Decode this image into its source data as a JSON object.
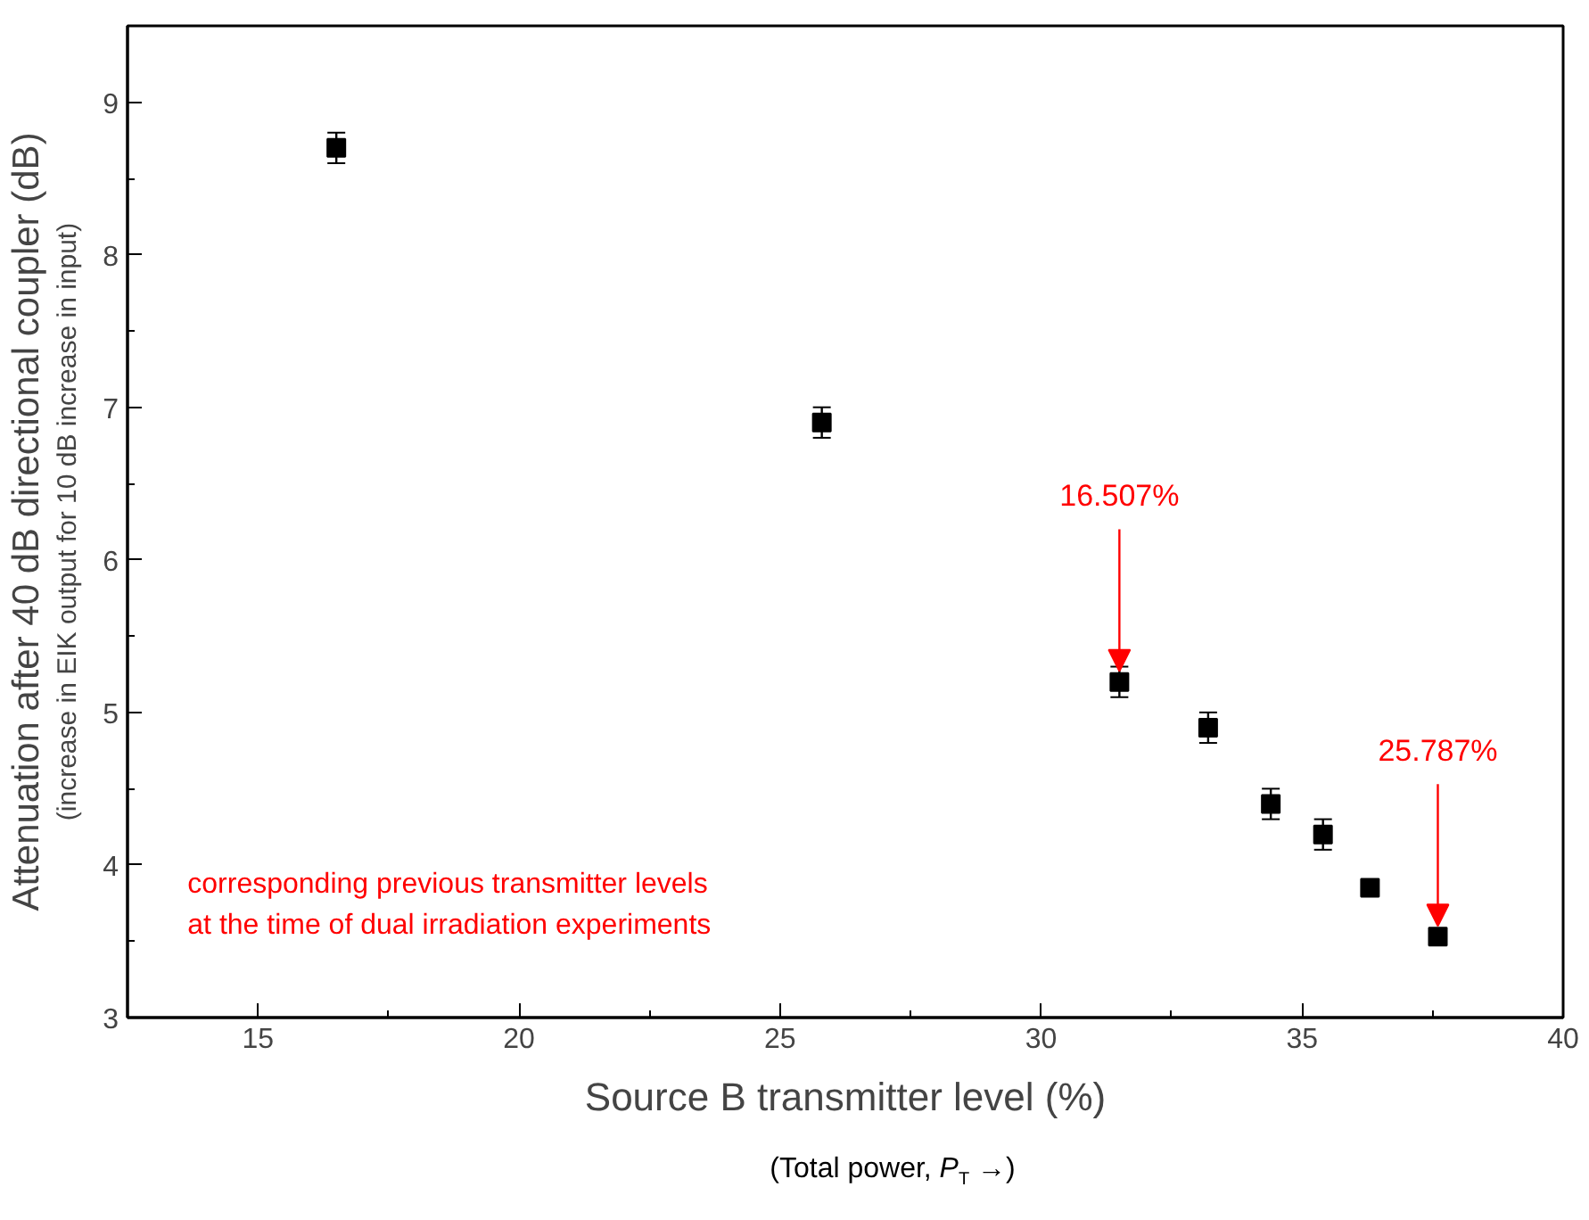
{
  "chart_data": {
    "type": "scatter",
    "xlabel": "Source B transmitter level (%)",
    "ylabel": "Attenuation after 40 dB directional coupler (dB)",
    "subtitle": "(Total power, P$_{T}$ →)",
    "x": [
      16.5,
      25.8,
      31.5,
      33.2,
      34.4,
      35.4,
      36.3,
      37.6
    ],
    "values": [
      8.7,
      6.9,
      5.2,
      4.9,
      4.4,
      4.2,
      3.85,
      3.53
    ],
    "errors": [
      0.1,
      0.1,
      0.1,
      0.1,
      0.1,
      0.1,
      0.03,
      0.03
    ],
    "color": "#000000",
    "marker": "square",
    "xlim": [
      12.5,
      40
    ],
    "ylim": [
      3,
      9.5
    ],
    "xticks": [
      15,
      20,
      25,
      30,
      35,
      40
    ],
    "yticks": [
      3,
      4,
      5,
      6,
      7,
      8,
      9
    ],
    "grid": false,
    "annotations": [
      "(increase in EIK output for 10 dB increase in input)",
      "corresponding previous transmitter levels\nat the time of dual irradiation experiments",
      {
        "text": "16.507%",
        "x": 31.5,
        "y": 5.2
      },
      {
        "text": "25.787%",
        "x": 37.6,
        "y": 3.53
      }
    ]
  }
}
